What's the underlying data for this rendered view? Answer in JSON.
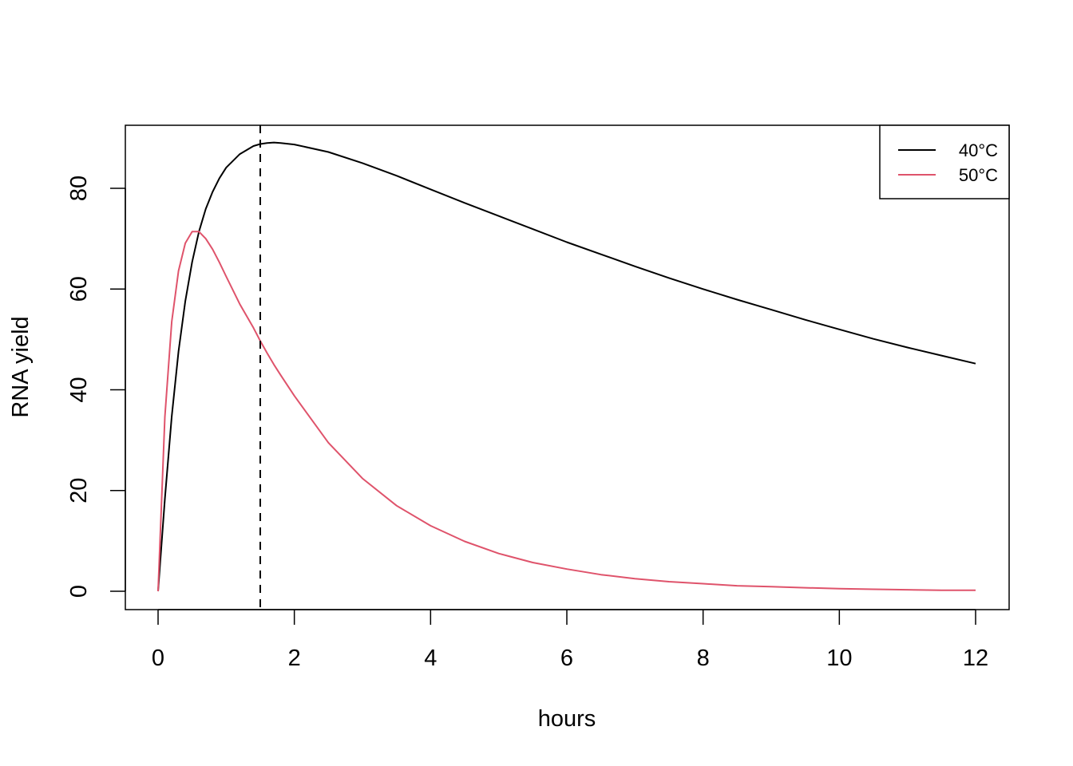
{
  "chart_data": {
    "type": "line",
    "title": "",
    "xlabel": "hours",
    "ylabel": "RNA yield",
    "xlim": [
      0,
      12
    ],
    "ylim": [
      0,
      90
    ],
    "x_ticks": [
      0,
      2,
      4,
      6,
      8,
      10,
      12
    ],
    "y_ticks": [
      0,
      20,
      40,
      60,
      80
    ],
    "grid": false,
    "legend_position": "top-right",
    "vline": {
      "x": 1.5,
      "style": "dashed",
      "color": "#000000"
    },
    "x": [
      0,
      0.1,
      0.2,
      0.3,
      0.4,
      0.5,
      0.6,
      0.7,
      0.8,
      0.9,
      1.0,
      1.2,
      1.4,
      1.5,
      1.6,
      1.7,
      1.8,
      2.0,
      2.5,
      3,
      3.5,
      4,
      4.5,
      5,
      5.5,
      6,
      6.5,
      7,
      7.5,
      8,
      8.5,
      9,
      9.5,
      10,
      10.5,
      11,
      11.5,
      12
    ],
    "series": [
      {
        "name": "40°C",
        "color": "#000000",
        "values": [
          0,
          18.3,
          34.7,
          47.6,
          57.6,
          65.4,
          71.4,
          75.9,
          79.3,
          82.0,
          84.1,
          86.8,
          88.4,
          88.8,
          89.0,
          89.1,
          89.0,
          88.7,
          87.2,
          85.0,
          82.5,
          79.8,
          77.1,
          74.5,
          71.9,
          69.3,
          66.9,
          64.5,
          62.2,
          60.0,
          57.9,
          55.9,
          53.9,
          52.0,
          50.1,
          48.4,
          46.8,
          45.2
        ]
      },
      {
        "name": "50°C",
        "color": "#DF536B",
        "values": [
          0,
          34.6,
          53.5,
          63.6,
          69.1,
          71.4,
          71.4,
          70.0,
          67.9,
          65.3,
          62.5,
          57.0,
          52.3,
          49.7,
          47.3,
          45.0,
          42.9,
          38.8,
          29.5,
          22.4,
          17.0,
          13.0,
          9.9,
          7.5,
          5.7,
          4.4,
          3.3,
          2.5,
          1.9,
          1.5,
          1.1,
          0.9,
          0.7,
          0.5,
          0.4,
          0.3,
          0.2,
          0.2
        ]
      }
    ]
  }
}
